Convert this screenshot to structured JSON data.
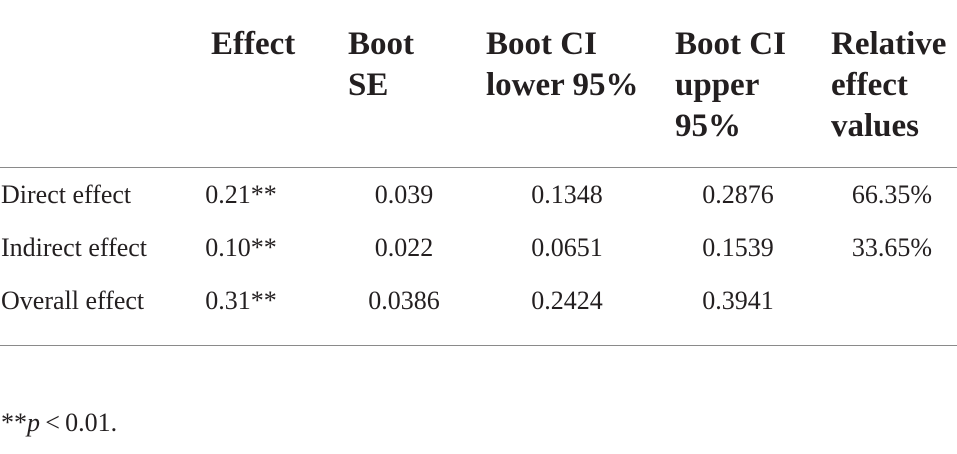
{
  "table": {
    "headers": {
      "effect": [
        "Effect"
      ],
      "boot_se": [
        "Boot",
        "SE"
      ],
      "boot_ci_lower": [
        "Boot CI",
        "lower 95%"
      ],
      "boot_ci_upper": [
        "Boot CI",
        "upper",
        "95%"
      ],
      "relative_effect": [
        "Relative",
        "effect",
        "values"
      ]
    },
    "rows": [
      {
        "label": "Direct effect",
        "effect": "0.21**",
        "boot_se": "0.039",
        "boot_ci_lower": "0.1348",
        "boot_ci_upper": "0.2876",
        "relative_effect": "66.35%"
      },
      {
        "label": "Indirect effect",
        "effect": "0.10**",
        "boot_se": "0.022",
        "boot_ci_lower": "0.0651",
        "boot_ci_upper": "0.1539",
        "relative_effect": "33.65%"
      },
      {
        "label": "Overall effect",
        "effect": "0.31**",
        "boot_se": "0.0386",
        "boot_ci_lower": "0.2424",
        "boot_ci_upper": "0.3941",
        "relative_effect": ""
      }
    ]
  },
  "footnote": {
    "prefix": "**",
    "p": "p",
    "suffix": " < 0.01."
  }
}
